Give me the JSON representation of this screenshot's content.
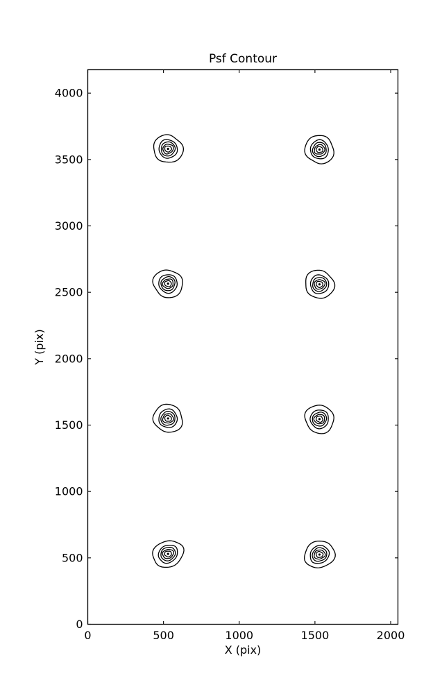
{
  "figure": {
    "background_color": "#ffffff",
    "line_color": "#000000",
    "text_color": "#000000"
  },
  "chart_data": {
    "type": "contour",
    "title": "Psf Contour",
    "xlabel": "X (pix)",
    "ylabel": "Y (pix)",
    "xlim": [
      0,
      2048
    ],
    "ylim": [
      0,
      4176
    ],
    "xticks": [
      0,
      500,
      1000,
      1500,
      2000
    ],
    "yticks": [
      0,
      500,
      1000,
      1500,
      2000,
      2500,
      3000,
      3500,
      4000
    ],
    "grid": false,
    "legend": null,
    "tick_direction": "in",
    "psf_spots": [
      {
        "x": 530,
        "y": 3580,
        "tilt_deg": 0,
        "elong": 1.02
      },
      {
        "x": 1530,
        "y": 3575,
        "tilt_deg": 0,
        "elong": 1.0
      },
      {
        "x": 530,
        "y": 2565,
        "tilt_deg": 0,
        "elong": 1.03
      },
      {
        "x": 1530,
        "y": 2560,
        "tilt_deg": 0,
        "elong": 1.02
      },
      {
        "x": 530,
        "y": 1550,
        "tilt_deg": 0,
        "elong": 1.03
      },
      {
        "x": 1530,
        "y": 1545,
        "tilt_deg": 0,
        "elong": 1.02
      },
      {
        "x": 530,
        "y": 530,
        "tilt_deg": -32,
        "elong": 1.12
      },
      {
        "x": 1530,
        "y": 525,
        "tilt_deg": -28,
        "elong": 1.1
      }
    ],
    "contour_ring_radii_units": [
      94,
      61,
      46,
      33,
      21
    ],
    "peak_dot_radius_units": 7
  }
}
